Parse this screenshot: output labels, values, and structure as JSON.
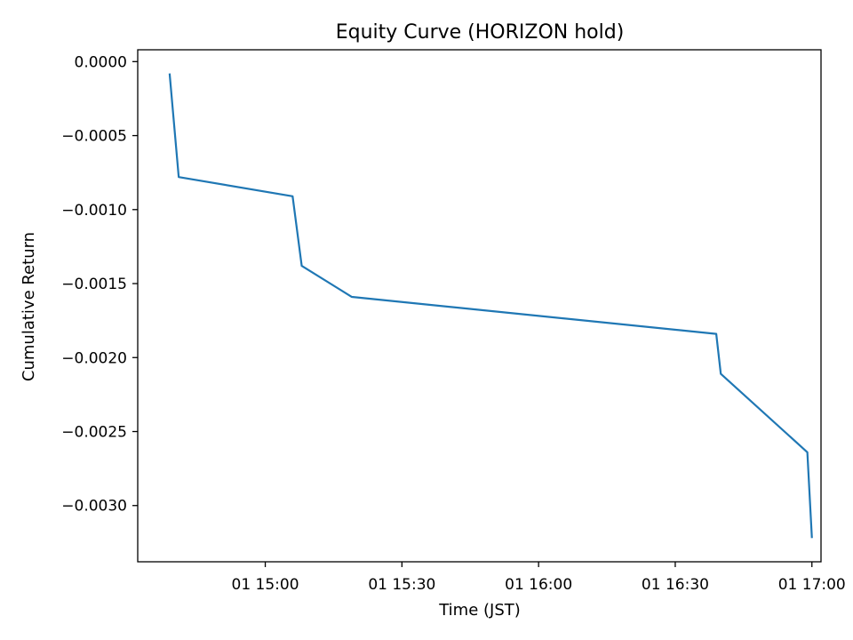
{
  "chart_data": {
    "type": "line",
    "title": "Equity Curve (HORIZON hold)",
    "xlabel": "Time (JST)",
    "ylabel": "Cumulative Return",
    "grid": false,
    "legend": "none",
    "xlim": [
      "14:32",
      "17:02"
    ],
    "ylim": [
      -0.00338,
      8e-05
    ],
    "x_ticks": [
      {
        "value": "15:00",
        "label": "01 15:00"
      },
      {
        "value": "15:30",
        "label": "01 15:30"
      },
      {
        "value": "16:00",
        "label": "01 16:00"
      },
      {
        "value": "16:30",
        "label": "01 16:30"
      },
      {
        "value": "17:00",
        "label": "01 17:00"
      }
    ],
    "y_ticks": [
      {
        "value": 0.0,
        "label": "0.0000"
      },
      {
        "value": -0.0005,
        "label": "−0.0005"
      },
      {
        "value": -0.001,
        "label": "−0.0010"
      },
      {
        "value": -0.0015,
        "label": "−0.0015"
      },
      {
        "value": -0.002,
        "label": "−0.0020"
      },
      {
        "value": -0.0025,
        "label": "−0.0025"
      },
      {
        "value": -0.003,
        "label": "−0.0030"
      }
    ],
    "series": [
      {
        "color": "#1f77b4",
        "points": [
          {
            "x": "14:39",
            "y": -8e-05
          },
          {
            "x": "14:41",
            "y": -0.00078
          },
          {
            "x": "15:06",
            "y": -0.00091
          },
          {
            "x": "15:08",
            "y": -0.00138
          },
          {
            "x": "15:19",
            "y": -0.00159
          },
          {
            "x": "16:39",
            "y": -0.00184
          },
          {
            "x": "16:40",
            "y": -0.00211
          },
          {
            "x": "16:59",
            "y": -0.00264
          },
          {
            "x": "17:00",
            "y": -0.00322
          }
        ]
      }
    ]
  }
}
